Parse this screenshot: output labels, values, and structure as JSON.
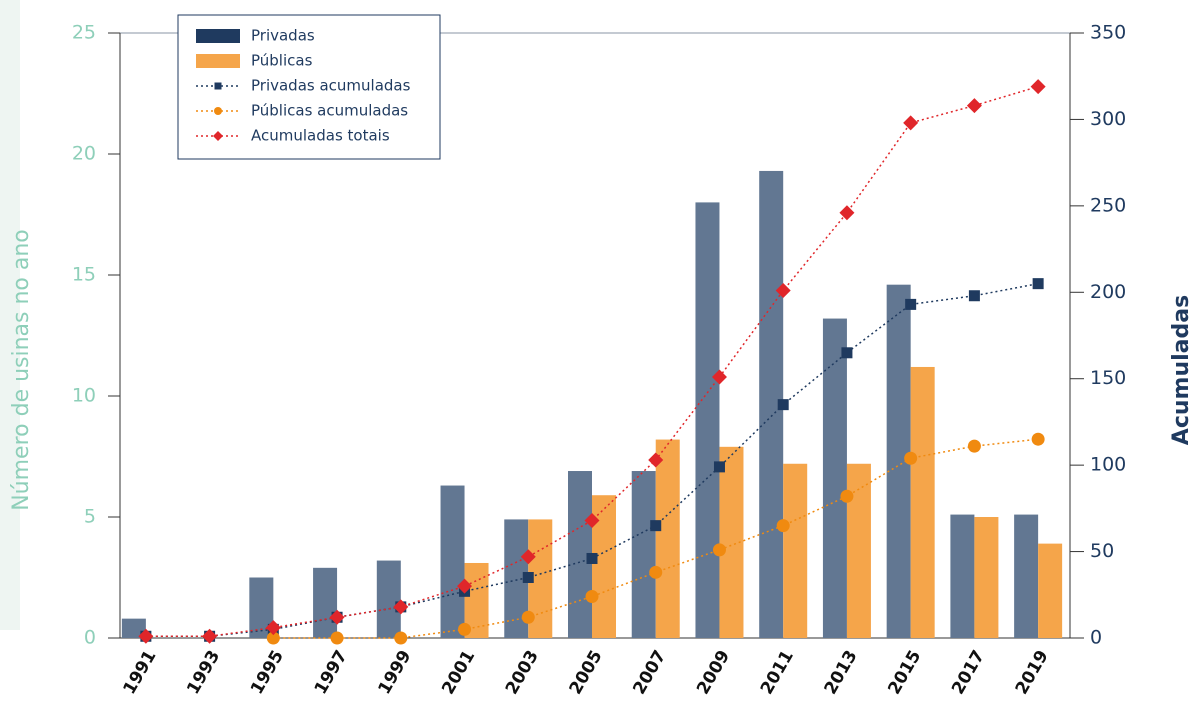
{
  "chart_data": {
    "type": "bar",
    "y_label": "Número de usinas no ano",
    "y2_label": "Acumuladas",
    "categories": [
      "1991",
      "1993",
      "1995",
      "1997",
      "1999",
      "2001",
      "2003",
      "2005",
      "2007",
      "2009",
      "2011",
      "2013",
      "2015",
      "2017",
      "2019"
    ],
    "series": [
      {
        "name": "Privadas",
        "type": "bar",
        "color": "#627792",
        "values": [
          0.8,
          0,
          2.5,
          2.9,
          3.2,
          6.3,
          4.9,
          6.9,
          6.9,
          18,
          19.3,
          13.2,
          14.6,
          5.1,
          5.1
        ]
      },
      {
        "name": "Públicas",
        "type": "bar",
        "color": "#f5a54a",
        "values": [
          0,
          0,
          0,
          0,
          0,
          3.1,
          4.9,
          5.9,
          8.2,
          7.9,
          7.2,
          7.2,
          11.2,
          5,
          3.9
        ]
      },
      {
        "name": "Privadas acumuladas",
        "type": "line",
        "axis": "y2",
        "marker": "square",
        "color": "#1f3a5f",
        "values": [
          1,
          1,
          5,
          12,
          18,
          27,
          35,
          46,
          65,
          99,
          135,
          165,
          193,
          198,
          205
        ]
      },
      {
        "name": "Públicas acumuladas",
        "type": "line",
        "axis": "y2",
        "marker": "circle",
        "color": "#f08a10",
        "values": [
          null,
          null,
          0,
          0,
          0,
          5,
          12,
          24,
          38,
          51,
          65,
          82,
          104,
          111,
          115
        ]
      },
      {
        "name": "Acumuladas totais",
        "type": "line",
        "axis": "y2",
        "marker": "diamond",
        "color": "#e0262a",
        "values": [
          1,
          1,
          6,
          12,
          18,
          30,
          47,
          68,
          103,
          151,
          201,
          246,
          298,
          308,
          319
        ]
      }
    ],
    "ylim": [
      0,
      25
    ],
    "yticks": [
      0,
      5,
      10,
      15,
      20,
      25
    ],
    "y2lim": [
      0,
      350
    ],
    "y2ticks": [
      0,
      50,
      100,
      150,
      200,
      250,
      300,
      350
    ],
    "legend": "top-left"
  }
}
